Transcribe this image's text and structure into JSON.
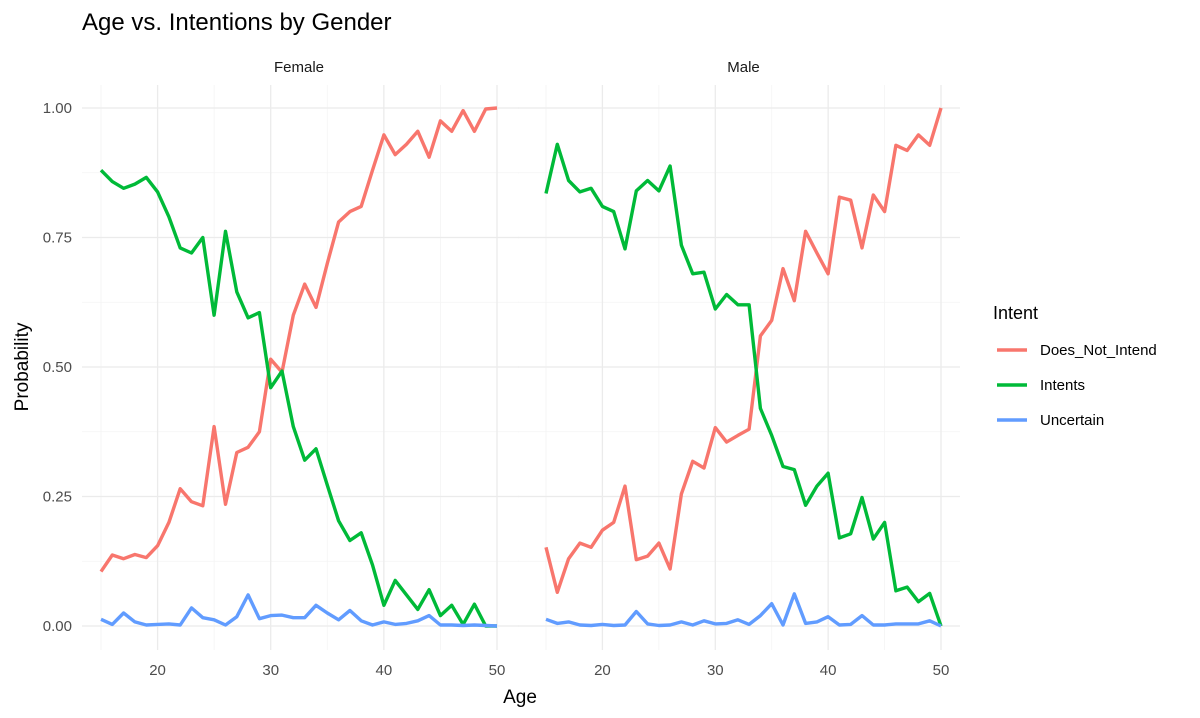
{
  "chart_data": {
    "type": "line",
    "title": "Age vs. Intentions by Gender",
    "xlabel": "Age",
    "ylabel": "Probability",
    "legend_title": "Intent",
    "legend_position": "right",
    "grid": true,
    "xlim": [
      15,
      50
    ],
    "ylim": [
      0,
      1
    ],
    "x_ticks": [
      "20",
      "30",
      "40",
      "50"
    ],
    "y_ticks": [
      "0.00",
      "0.25",
      "0.50",
      "0.75",
      "1.00"
    ],
    "x_tick_values": [
      20,
      30,
      40,
      50
    ],
    "y_tick_values": [
      0,
      0.25,
      0.5,
      0.75,
      1.0
    ],
    "x": [
      15,
      16,
      17,
      18,
      19,
      20,
      21,
      22,
      23,
      24,
      25,
      26,
      27,
      28,
      29,
      30,
      31,
      32,
      33,
      34,
      35,
      36,
      37,
      38,
      39,
      40,
      41,
      42,
      43,
      44,
      45,
      46,
      47,
      48,
      49,
      50
    ],
    "series_meta": [
      {
        "name": "Does_Not_Intend",
        "color": "#f8766d"
      },
      {
        "name": "Intents",
        "color": "#00ba38"
      },
      {
        "name": "Uncertain",
        "color": "#619cff"
      }
    ],
    "panels": [
      {
        "label": "Female",
        "series": [
          {
            "name": "Does_Not_Intend",
            "values": [
              0.105,
              0.137,
              0.13,
              0.138,
              0.132,
              0.155,
              0.2,
              0.265,
              0.24,
              0.232,
              0.385,
              0.235,
              0.335,
              0.345,
              0.375,
              0.515,
              0.49,
              0.6,
              0.66,
              0.615,
              0.7,
              0.78,
              0.8,
              0.81,
              0.88,
              0.948,
              0.91,
              0.93,
              0.955,
              0.905,
              0.975,
              0.955,
              0.995,
              0.955,
              0.998,
              1.0
            ]
          },
          {
            "name": "Intents",
            "values": [
              0.88,
              0.858,
              0.845,
              0.853,
              0.866,
              0.838,
              0.79,
              0.73,
              0.72,
              0.75,
              0.6,
              0.762,
              0.645,
              0.595,
              0.605,
              0.46,
              0.492,
              0.385,
              0.32,
              0.342,
              0.272,
              0.203,
              0.165,
              0.18,
              0.118,
              0.04,
              0.088,
              0.06,
              0.032,
              0.07,
              0.02,
              0.04,
              0.003,
              0.042,
              0.0,
              0.0
            ]
          },
          {
            "name": "Uncertain",
            "values": [
              0.013,
              0.003,
              0.025,
              0.008,
              0.002,
              0.003,
              0.004,
              0.002,
              0.035,
              0.016,
              0.012,
              0.002,
              0.018,
              0.06,
              0.014,
              0.02,
              0.021,
              0.016,
              0.016,
              0.04,
              0.025,
              0.012,
              0.03,
              0.01,
              0.002,
              0.008,
              0.003,
              0.005,
              0.01,
              0.02,
              0.002,
              0.002,
              0.001,
              0.002,
              0.001,
              0.0
            ]
          }
        ]
      },
      {
        "label": "Male",
        "series": [
          {
            "name": "Does_Not_Intend",
            "values": [
              0.152,
              0.065,
              0.13,
              0.16,
              0.152,
              0.185,
              0.2,
              0.27,
              0.128,
              0.135,
              0.16,
              0.11,
              0.255,
              0.318,
              0.305,
              0.383,
              0.355,
              0.368,
              0.38,
              0.56,
              0.59,
              0.69,
              0.628,
              0.762,
              0.72,
              0.68,
              0.828,
              0.822,
              0.73,
              0.832,
              0.8,
              0.928,
              0.918,
              0.948,
              0.928,
              1.0
            ]
          },
          {
            "name": "Intents",
            "values": [
              0.835,
              0.93,
              0.86,
              0.838,
              0.845,
              0.81,
              0.8,
              0.728,
              0.84,
              0.86,
              0.84,
              0.888,
              0.735,
              0.68,
              0.683,
              0.612,
              0.64,
              0.62,
              0.62,
              0.42,
              0.368,
              0.308,
              0.302,
              0.233,
              0.27,
              0.295,
              0.17,
              0.178,
              0.248,
              0.168,
              0.2,
              0.068,
              0.075,
              0.047,
              0.063,
              0.0
            ]
          },
          {
            "name": "Uncertain",
            "values": [
              0.013,
              0.005,
              0.008,
              0.002,
              0.001,
              0.003,
              0.001,
              0.002,
              0.028,
              0.004,
              0.001,
              0.002,
              0.008,
              0.002,
              0.01,
              0.004,
              0.005,
              0.012,
              0.003,
              0.02,
              0.043,
              0.002,
              0.062,
              0.005,
              0.008,
              0.018,
              0.002,
              0.003,
              0.02,
              0.002,
              0.002,
              0.004,
              0.004,
              0.004,
              0.01,
              0.0
            ]
          }
        ]
      }
    ]
  }
}
